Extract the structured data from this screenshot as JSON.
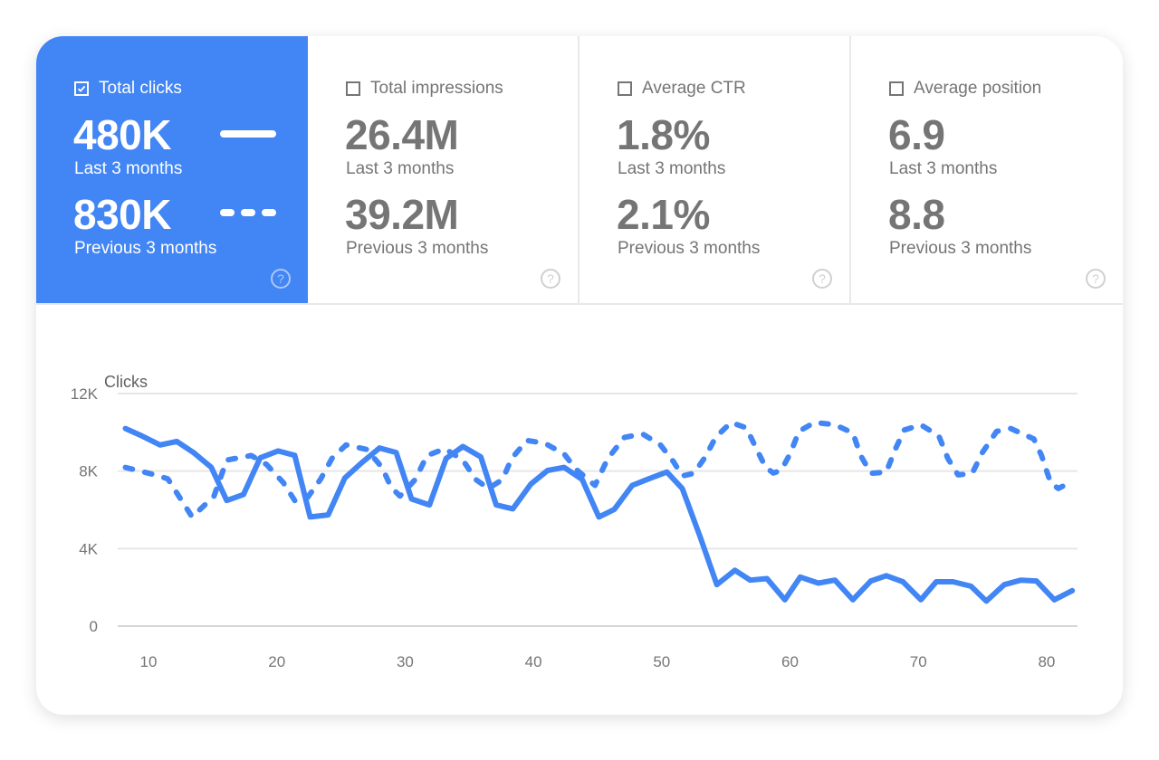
{
  "colors": {
    "accent": "#4285f4",
    "text_muted": "#757575",
    "grid": "#e6e6e6"
  },
  "tiles": [
    {
      "label": "Total clicks",
      "checked": true,
      "current": "480K",
      "current_label": "Last 3 months",
      "previous": "830K",
      "previous_label": "Previous 3 months",
      "icon": "help-icon"
    },
    {
      "label": "Total impressions",
      "checked": false,
      "current": "26.4M",
      "current_label": "Last 3 months",
      "previous": "39.2M",
      "previous_label": "Previous 3 months",
      "icon": "help-icon"
    },
    {
      "label": "Average CTR",
      "checked": false,
      "current": "1.8%",
      "current_label": "Last 3 months",
      "previous": "2.1%",
      "previous_label": "Previous 3 months",
      "icon": "help-icon"
    },
    {
      "label": "Average position",
      "checked": false,
      "current": "6.9",
      "current_label": "Last 3 months",
      "previous": "8.8",
      "previous_label": "Previous 3 months",
      "icon": "help-icon"
    }
  ],
  "chart_data": {
    "type": "line",
    "ylabel": "Clicks",
    "ylim": [
      0,
      12000
    ],
    "xlim": [
      8,
      82
    ],
    "yticks": [
      {
        "value": 0,
        "label": "0"
      },
      {
        "value": 4000,
        "label": "4K"
      },
      {
        "value": 8000,
        "label": "8K"
      },
      {
        "value": 12000,
        "label": "12K"
      }
    ],
    "xticks": [
      10,
      20,
      30,
      40,
      50,
      60,
      70,
      80
    ],
    "grid": true,
    "series": [
      {
        "style": "solid",
        "color": "#4285f4",
        "points": [
          [
            8.2,
            10200
          ],
          [
            9.5,
            9810
          ],
          [
            10.9,
            9350
          ],
          [
            12.2,
            9530
          ],
          [
            13.5,
            8960
          ],
          [
            14.9,
            8190
          ],
          [
            16.1,
            6480
          ],
          [
            17.4,
            6790
          ],
          [
            18.7,
            8680
          ],
          [
            20.1,
            9040
          ],
          [
            21.4,
            8810
          ],
          [
            22.6,
            5630
          ],
          [
            24.0,
            5740
          ],
          [
            25.3,
            7640
          ],
          [
            26.6,
            8420
          ],
          [
            28.0,
            9190
          ],
          [
            29.3,
            8960
          ],
          [
            30.5,
            6560
          ],
          [
            31.9,
            6250
          ],
          [
            33.2,
            8650
          ],
          [
            34.5,
            9270
          ],
          [
            35.9,
            8730
          ],
          [
            37.1,
            6250
          ],
          [
            38.4,
            6050
          ],
          [
            39.8,
            7330
          ],
          [
            41.1,
            8030
          ],
          [
            42.4,
            8190
          ],
          [
            43.8,
            7570
          ],
          [
            45.1,
            5630
          ],
          [
            46.3,
            6020
          ],
          [
            47.7,
            7260
          ],
          [
            49.0,
            7600
          ],
          [
            50.4,
            7950
          ],
          [
            51.6,
            7100
          ],
          [
            53.0,
            4600
          ],
          [
            54.3,
            2140
          ],
          [
            55.7,
            2880
          ],
          [
            56.9,
            2370
          ],
          [
            58.2,
            2450
          ],
          [
            59.6,
            1360
          ],
          [
            60.8,
            2530
          ],
          [
            62.2,
            2220
          ],
          [
            63.5,
            2370
          ],
          [
            64.9,
            1360
          ],
          [
            66.3,
            2330
          ],
          [
            67.5,
            2600
          ],
          [
            68.8,
            2290
          ],
          [
            70.2,
            1360
          ],
          [
            71.4,
            2290
          ],
          [
            72.7,
            2290
          ],
          [
            74.1,
            2060
          ],
          [
            75.3,
            1290
          ],
          [
            76.7,
            2140
          ],
          [
            78.0,
            2370
          ],
          [
            79.2,
            2330
          ],
          [
            80.6,
            1360
          ],
          [
            82.0,
            1830
          ]
        ]
      },
      {
        "style": "dashed",
        "color": "#4285f4",
        "points": [
          [
            8.2,
            8190
          ],
          [
            10.3,
            7840
          ],
          [
            11.5,
            7600
          ],
          [
            13.4,
            5630
          ],
          [
            15.1,
            6700
          ],
          [
            16.1,
            8570
          ],
          [
            18.0,
            8800
          ],
          [
            19.2,
            8340
          ],
          [
            20.5,
            7410
          ],
          [
            21.4,
            6480
          ],
          [
            22.4,
            6640
          ],
          [
            23.4,
            7570
          ],
          [
            24.3,
            8650
          ],
          [
            25.4,
            9350
          ],
          [
            27.0,
            9120
          ],
          [
            28.2,
            8190
          ],
          [
            28.9,
            7180
          ],
          [
            29.6,
            6710
          ],
          [
            30.8,
            7570
          ],
          [
            31.7,
            8800
          ],
          [
            33.1,
            9150
          ],
          [
            34.5,
            8570
          ],
          [
            35.5,
            7570
          ],
          [
            36.5,
            7100
          ],
          [
            37.6,
            7570
          ],
          [
            38.3,
            8650
          ],
          [
            39.5,
            9580
          ],
          [
            40.9,
            9430
          ],
          [
            42.4,
            8880
          ],
          [
            43.3,
            8100
          ],
          [
            44.8,
            7260
          ],
          [
            45.8,
            8650
          ],
          [
            47.1,
            9740
          ],
          [
            48.5,
            9920
          ],
          [
            49.9,
            9350
          ],
          [
            50.9,
            8500
          ],
          [
            51.6,
            7750
          ],
          [
            52.5,
            7880
          ],
          [
            53.4,
            8730
          ],
          [
            54.2,
            9740
          ],
          [
            55.4,
            10510
          ],
          [
            56.6,
            10230
          ],
          [
            57.4,
            9120
          ],
          [
            58.1,
            8190
          ],
          [
            58.7,
            7900
          ],
          [
            59.3,
            8030
          ],
          [
            60.0,
            8880
          ],
          [
            60.7,
            10050
          ],
          [
            61.9,
            10510
          ],
          [
            63.5,
            10390
          ],
          [
            64.9,
            9970
          ],
          [
            65.5,
            8810
          ],
          [
            66.3,
            7880
          ],
          [
            67.5,
            7950
          ],
          [
            68.2,
            9120
          ],
          [
            68.9,
            10120
          ],
          [
            70.2,
            10390
          ],
          [
            71.6,
            9810
          ],
          [
            72.3,
            8650
          ],
          [
            73.1,
            7800
          ],
          [
            74.2,
            7880
          ],
          [
            75.0,
            8960
          ],
          [
            76.1,
            10050
          ],
          [
            77.2,
            10200
          ],
          [
            79.0,
            9660
          ],
          [
            79.6,
            8810
          ],
          [
            80.3,
            7410
          ],
          [
            80.9,
            7100
          ],
          [
            81.6,
            7330
          ]
        ]
      }
    ]
  }
}
